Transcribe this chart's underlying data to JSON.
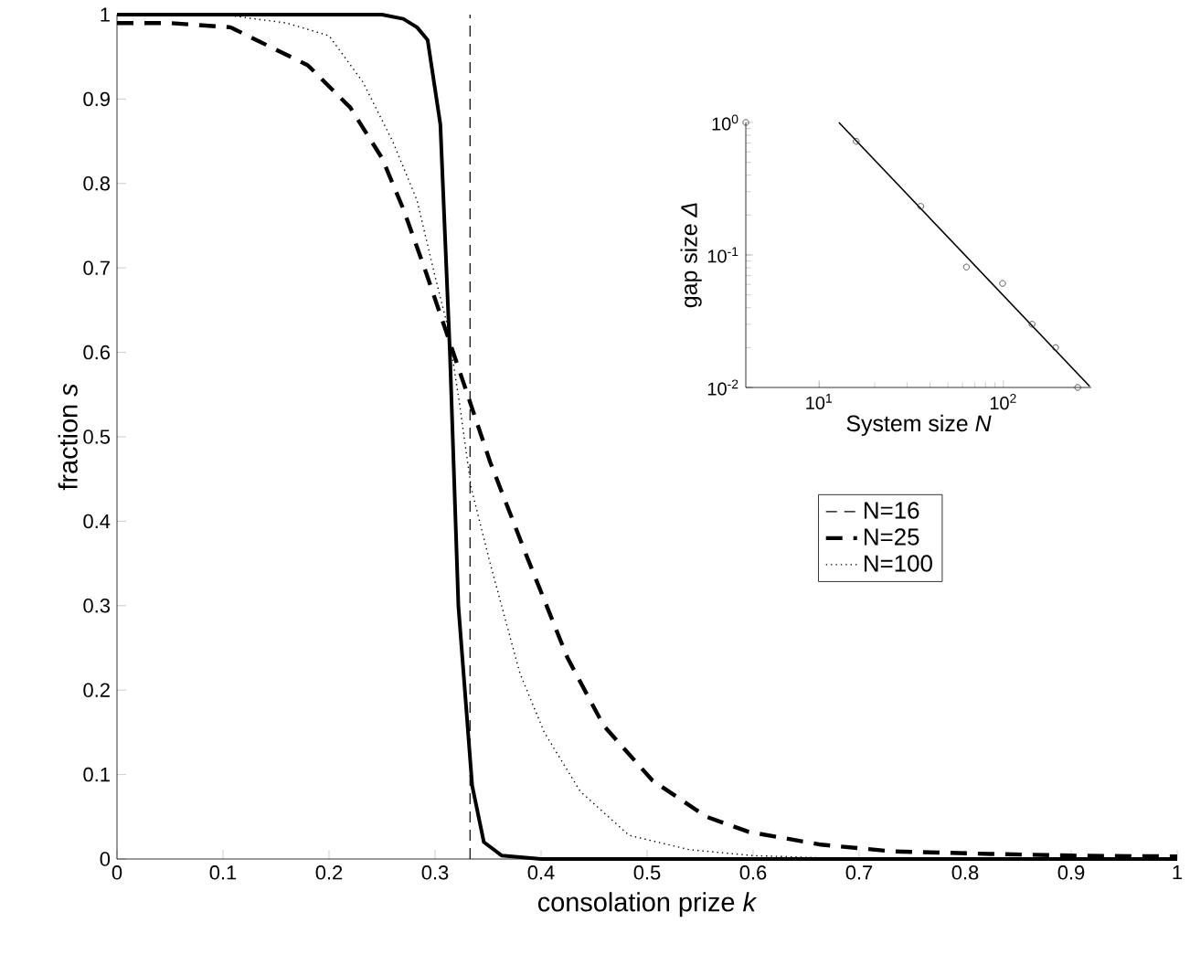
{
  "chart_data": [
    {
      "type": "line",
      "xlabel": "consolation prize *k*",
      "ylabel": "fraction *s*",
      "xlim": [
        0,
        1
      ],
      "ylim": [
        0,
        1
      ],
      "xticks": [
        0,
        0.1,
        0.2,
        0.3,
        0.4,
        0.5,
        0.6,
        0.7,
        0.8,
        0.9,
        1
      ],
      "yticks": [
        0,
        0.1,
        0.2,
        0.3,
        0.4,
        0.5,
        0.6,
        0.7,
        0.8,
        0.9,
        1
      ],
      "legend": "right",
      "grid": false,
      "series": [
        {
          "name": "N=16",
          "color": "#000000",
          "line_style": "dashed",
          "x": [
            0.333,
            0.333
          ],
          "values": [
            0,
            1
          ]
        },
        {
          "color": "#000000",
          "line_style": "solid",
          "x": [
            0,
            0.1,
            0.2,
            0.25,
            0.27,
            0.283,
            0.293,
            0.305,
            0.314,
            0.322,
            0.335,
            0.346,
            0.363,
            0.4,
            0.5,
            0.6,
            0.7,
            0.8,
            0.9,
            1
          ],
          "values": [
            1,
            1,
            1,
            1,
            0.995,
            0.985,
            0.97,
            0.87,
            0.6,
            0.3,
            0.087,
            0.02,
            0.004,
            0,
            0,
            0,
            0,
            0,
            0,
            0
          ]
        },
        {
          "name": "N=25",
          "color": "#000000",
          "line_style": "dashed",
          "x": [
            0,
            0.05,
            0.107,
            0.18,
            0.22,
            0.25,
            0.27,
            0.29,
            0.309,
            0.329,
            0.352,
            0.386,
            0.425,
            0.459,
            0.505,
            0.556,
            0.596,
            0.664,
            0.732,
            0.824,
            0.9,
            1
          ],
          "values": [
            0.99,
            0.99,
            0.985,
            0.94,
            0.89,
            0.83,
            0.77,
            0.7,
            0.63,
            0.556,
            0.47,
            0.36,
            0.238,
            0.158,
            0.093,
            0.05,
            0.032,
            0.017,
            0.009,
            0.006,
            0.004,
            0.003
          ]
        },
        {
          "name": "N=100",
          "color": "#000000",
          "line_style": "dotted",
          "x": [
            0,
            0.1,
            0.16,
            0.2,
            0.232,
            0.26,
            0.283,
            0.3,
            0.312,
            0.323,
            0.334,
            0.352,
            0.38,
            0.403,
            0.437,
            0.483,
            0.54,
            0.6,
            0.7,
            0.8,
            0.9,
            1
          ],
          "values": [
            1,
            1,
            0.99,
            0.975,
            0.92,
            0.85,
            0.78,
            0.69,
            0.63,
            0.54,
            0.44,
            0.35,
            0.22,
            0.15,
            0.08,
            0.028,
            0.011,
            0.004,
            0,
            0,
            0,
            0
          ]
        }
      ]
    },
    {
      "type": "scatter",
      "xlabel": "System size *N*",
      "ylabel": "gap size *Δ*",
      "log": "xy",
      "xlim": [
        4,
        300
      ],
      "ylim": [
        0.01,
        1
      ],
      "xticks": [
        {
          "value": 10,
          "label": "10$^{1}$"
        },
        {
          "value": 100,
          "label": "10$^{2}$"
        }
      ],
      "yticks": [
        {
          "value": 0.01,
          "label": "10$^{-2}$"
        },
        {
          "value": 0.1,
          "label": "10$^{-1}$"
        },
        {
          "value": 1,
          "label": "10$^{0}$"
        }
      ],
      "marker": "circle",
      "grid": false,
      "legend": false,
      "series": [
        {
          "color": "#333333",
          "x": [
            4,
            15.9,
            35.6,
            63,
            99,
            143,
            192,
            253
          ],
          "values": [
            1,
            0.72,
            0.233,
            0.081,
            0.061,
            0.03,
            0.02,
            0.01
          ]
        },
        {
          "type": "line",
          "marker": "none",
          "color": "#000000",
          "x": [
            12.8,
            294
          ],
          "values": [
            1,
            0.0102
          ]
        }
      ]
    }
  ]
}
